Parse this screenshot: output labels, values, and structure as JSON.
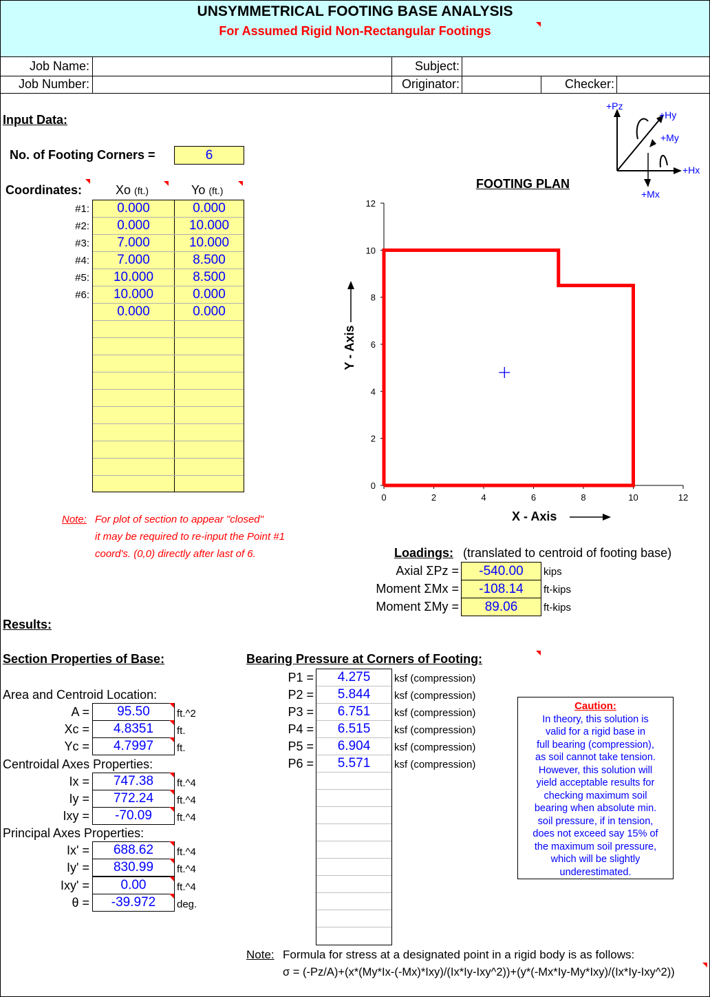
{
  "header": {
    "title": "UNSYMMETRICAL FOOTING BASE ANALYSIS",
    "subtitle": "For Assumed Rigid Non-Rectangular Footings"
  },
  "job_info": {
    "job_name_label": "Job Name:",
    "job_number_label": "Job Number:",
    "subject_label": "Subject:",
    "originator_label": "Originator:",
    "checker_label": "Checker:",
    "job_name": "",
    "job_number": "",
    "subject": "",
    "originator": "",
    "checker": ""
  },
  "axes_legend": {
    "pz": "+Pz",
    "hy": "+Hy",
    "my": "+My",
    "hx": "+Hx",
    "mx": "+Mx"
  },
  "input": {
    "heading": "Input Data:",
    "corners_label": "No. of Footing Corners =",
    "corners_value": "6",
    "coordinates_label": "Coordinates:",
    "xo_label": "Xo",
    "yo_label": "Yo",
    "unit_ft": "(ft.)",
    "rows": [
      {
        "label": "#1:",
        "x": "0.000",
        "y": "0.000"
      },
      {
        "label": "#2:",
        "x": "0.000",
        "y": "10.000"
      },
      {
        "label": "#3:",
        "x": "7.000",
        "y": "10.000"
      },
      {
        "label": "#4:",
        "x": "7.000",
        "y": "8.500"
      },
      {
        "label": "#5:",
        "x": "10.000",
        "y": "8.500"
      },
      {
        "label": "#6:",
        "x": "10.000",
        "y": "0.000"
      },
      {
        "label": "",
        "x": "0.000",
        "y": "0.000"
      }
    ],
    "note_label": "Note:",
    "note_line1": "For plot of section to appear \"closed\"",
    "note_line2": "it may be required to re-input the Point #1",
    "note_line3": "coord's. (0,0) directly after last of 6."
  },
  "chart_data": {
    "type": "line",
    "title": "FOOTING PLAN",
    "xlabel": "X - Axis",
    "ylabel": "Y - Axis",
    "xlim": [
      0,
      12
    ],
    "ylim": [
      0,
      12
    ],
    "xticks": [
      "0",
      "2",
      "4",
      "6",
      "8",
      "10",
      "12"
    ],
    "yticks": [
      "0",
      "2",
      "4",
      "6",
      "8",
      "10",
      "12"
    ],
    "series": [
      {
        "color": "#ff0000",
        "x": [
          0,
          0,
          7,
          7,
          10,
          10,
          0
        ],
        "y": [
          0,
          10,
          10,
          8.5,
          8.5,
          0,
          0
        ]
      }
    ],
    "centroid": {
      "x": 4.8351,
      "y": 4.7997,
      "color": "#0000ff"
    },
    "grid": false
  },
  "loadings": {
    "heading": "Loadings:",
    "subheading": "(translated to centroid of footing base)",
    "items": [
      {
        "label": "Axial ΣPz =",
        "value": "-540.00",
        "unit": "kips"
      },
      {
        "label": "Moment ΣMx =",
        "value": "-108.14",
        "unit": "ft-kips"
      },
      {
        "label": "Moment ΣMy =",
        "value": "89.06",
        "unit": "ft-kips"
      }
    ]
  },
  "results": {
    "heading": "Results:",
    "section_heading": "Section Properties of Base:",
    "area_heading": "Area and Centroid Location:",
    "centroidal_heading": "Centroidal Axes Properties:",
    "principal_heading": "Principal Axes Properties:",
    "area": [
      {
        "label": "A =",
        "value": "95.50",
        "unit": "ft.^2"
      },
      {
        "label": "Xc =",
        "value": "4.8351",
        "unit": "ft."
      },
      {
        "label": "Yc =",
        "value": "4.7997",
        "unit": "ft."
      }
    ],
    "centroidal": [
      {
        "label": "Ix =",
        "value": "747.38",
        "unit": "ft.^4"
      },
      {
        "label": "Iy =",
        "value": "772.24",
        "unit": "ft.^4"
      },
      {
        "label": "Ixy =",
        "value": "-70.09",
        "unit": "ft.^4"
      }
    ],
    "principal": [
      {
        "label": "Ix' =",
        "value": "688.62",
        "unit": "ft.^4"
      },
      {
        "label": "Iy' =",
        "value": "830.99",
        "unit": "ft.^4"
      },
      {
        "label": "Ixy' =",
        "value": "0.00",
        "unit": "ft.^4"
      },
      {
        "label": "θ =",
        "value": "-39.972",
        "unit": "deg."
      }
    ]
  },
  "bearing": {
    "heading": "Bearing Pressure at Corners of Footing:",
    "items": [
      {
        "label": "P1 =",
        "value": "4.275",
        "unit": "ksf (compression)"
      },
      {
        "label": "P2 =",
        "value": "5.844",
        "unit": "ksf (compression)"
      },
      {
        "label": "P3 =",
        "value": "6.751",
        "unit": "ksf (compression)"
      },
      {
        "label": "P4 =",
        "value": "6.515",
        "unit": "ksf (compression)"
      },
      {
        "label": "P5 =",
        "value": "6.904",
        "unit": "ksf (compression)"
      },
      {
        "label": "P6 =",
        "value": "5.571",
        "unit": "ksf (compression)"
      }
    ]
  },
  "caution": {
    "title": "Caution:",
    "lines": [
      "In theory, this solution is",
      "valid for a rigid base in",
      "full bearing (compression),",
      "as soil cannot take tension.",
      "However, this solution will",
      "yield acceptable results for",
      "checking maximum soil",
      "bearing when absolute min.",
      "soil pressure, if in tension,",
      "does not exceed say 15% of",
      "the maximum soil pressure,",
      "which will be slightly",
      "underestimated."
    ]
  },
  "formula": {
    "note_label": "Note:",
    "note_text": "Formula for stress at a designated point in a rigid body is as follows:",
    "formula_text": "σ = (-Pz/A)+(x*(My*Ix-(-Mx)*Ixy)/(Ix*Iy-Ixy^2))+(y*(-Mx*Iy-My*Ixy)/(Ix*Iy-Ixy^2))"
  }
}
